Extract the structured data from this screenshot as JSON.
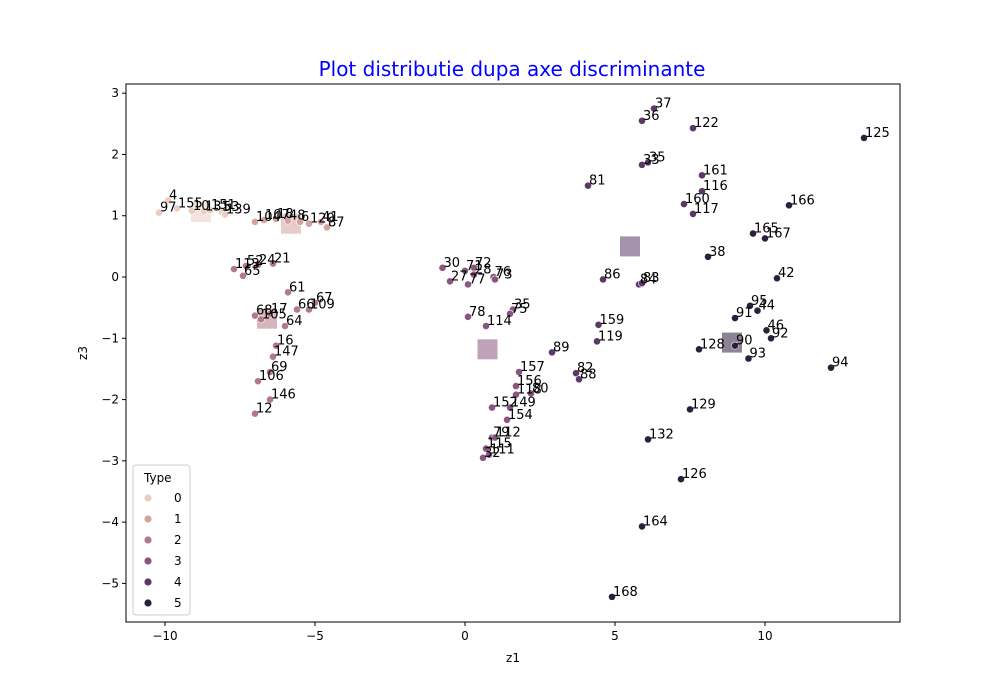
{
  "chart_data": {
    "type": "scatter",
    "title": "Plot distributie dupa axe discriminante",
    "title_color": "#0000ff",
    "xlabel": "z1",
    "ylabel": "z3",
    "xlim": [
      -11.3,
      14.5
    ],
    "ylim": [
      -5.63,
      3.15
    ],
    "xticks": [
      -10,
      -5,
      0,
      5,
      10
    ],
    "yticks": [
      3,
      2,
      1,
      0,
      -1,
      -2,
      -3,
      -4,
      -5
    ],
    "grid": false,
    "legend": {
      "title": "Type",
      "placement": "lower-left",
      "entries": [
        {
          "label": "0",
          "color": "#ebcdc2"
        },
        {
          "label": "1",
          "color": "#d5a2a0"
        },
        {
          "label": "2",
          "color": "#b47987"
        },
        {
          "label": "3",
          "color": "#8a5680"
        },
        {
          "label": "4",
          "color": "#5b3868"
        },
        {
          "label": "5",
          "color": "#2d1e3e"
        }
      ]
    },
    "points": [
      {
        "label": "4",
        "x": -9.9,
        "y": 1.25,
        "t": 0
      },
      {
        "label": "97",
        "x": -10.2,
        "y": 1.05,
        "t": 0
      },
      {
        "label": "155",
        "x": -9.6,
        "y": 1.12,
        "t": 0
      },
      {
        "label": "10",
        "x": -9.1,
        "y": 1.08,
        "t": 0
      },
      {
        "label": "131",
        "x": -8.7,
        "y": 1.07,
        "t": 0
      },
      {
        "label": "151",
        "x": -8.5,
        "y": 1.09,
        "t": 0
      },
      {
        "label": "53",
        "x": -8.1,
        "y": 1.06,
        "t": 0
      },
      {
        "label": "139",
        "x": -8.0,
        "y": 1.02,
        "t": 0
      },
      {
        "label": "104",
        "x": -7.0,
        "y": 0.9,
        "t": 1
      },
      {
        "label": "107",
        "x": -6.7,
        "y": 0.93,
        "t": 1
      },
      {
        "label": "18",
        "x": -6.3,
        "y": 0.95,
        "t": 1
      },
      {
        "label": "48",
        "x": -5.9,
        "y": 0.92,
        "t": 1
      },
      {
        "label": "6",
        "x": -5.5,
        "y": 0.9,
        "t": 1
      },
      {
        "label": "120",
        "x": -5.2,
        "y": 0.87,
        "t": 1
      },
      {
        "label": "41",
        "x": -4.8,
        "y": 0.9,
        "t": 1
      },
      {
        "label": "87",
        "x": -4.6,
        "y": 0.81,
        "t": 1
      },
      {
        "label": "113",
        "x": -7.7,
        "y": 0.13,
        "t": 2
      },
      {
        "label": "52",
        "x": -7.3,
        "y": 0.18,
        "t": 2
      },
      {
        "label": "24",
        "x": -6.9,
        "y": 0.2,
        "t": 2
      },
      {
        "label": "21",
        "x": -6.4,
        "y": 0.22,
        "t": 2
      },
      {
        "label": "65",
        "x": -7.4,
        "y": 0.02,
        "t": 2
      },
      {
        "label": "61",
        "x": -5.9,
        "y": -0.25,
        "t": 2
      },
      {
        "label": "67",
        "x": -5.0,
        "y": -0.42,
        "t": 2
      },
      {
        "label": "66",
        "x": -5.6,
        "y": -0.53,
        "t": 2
      },
      {
        "label": "109",
        "x": -5.2,
        "y": -0.53,
        "t": 2
      },
      {
        "label": "17",
        "x": -6.5,
        "y": -0.6,
        "t": 2
      },
      {
        "label": "68",
        "x": -7.0,
        "y": -0.63,
        "t": 2
      },
      {
        "label": "105",
        "x": -6.8,
        "y": -0.69,
        "t": 2
      },
      {
        "label": "64",
        "x": -6.0,
        "y": -0.8,
        "t": 2
      },
      {
        "label": "16",
        "x": -6.3,
        "y": -1.12,
        "t": 2
      },
      {
        "label": "147",
        "x": -6.4,
        "y": -1.3,
        "t": 2
      },
      {
        "label": "69",
        "x": -6.5,
        "y": -1.55,
        "t": 2
      },
      {
        "label": "106",
        "x": -6.9,
        "y": -1.7,
        "t": 2
      },
      {
        "label": "146",
        "x": -6.5,
        "y": -2.0,
        "t": 2
      },
      {
        "label": "12",
        "x": -7.0,
        "y": -2.23,
        "t": 2
      },
      {
        "label": "30",
        "x": -0.75,
        "y": 0.15,
        "t": 3
      },
      {
        "label": "27",
        "x": -0.5,
        "y": -0.07,
        "t": 3
      },
      {
        "label": "71",
        "x": 0.0,
        "y": 0.1,
        "t": 3
      },
      {
        "label": "72",
        "x": 0.3,
        "y": 0.15,
        "t": 3
      },
      {
        "label": "28",
        "x": 0.3,
        "y": 0.04,
        "t": 3
      },
      {
        "label": "77",
        "x": 0.1,
        "y": -0.12,
        "t": 3
      },
      {
        "label": "76",
        "x": 0.95,
        "y": 0.0,
        "t": 3
      },
      {
        "label": "73",
        "x": 1.0,
        "y": -0.04,
        "t": 3
      },
      {
        "label": "78",
        "x": 0.1,
        "y": -0.65,
        "t": 3
      },
      {
        "label": "114",
        "x": 0.7,
        "y": -0.8,
        "t": 3
      },
      {
        "label": "35",
        "x": 1.6,
        "y": -0.53,
        "t": 3
      },
      {
        "label": "75",
        "x": 1.5,
        "y": -0.6,
        "t": 3
      },
      {
        "label": "157",
        "x": 1.8,
        "y": -1.55,
        "t": 3
      },
      {
        "label": "156",
        "x": 1.7,
        "y": -1.78,
        "t": 3
      },
      {
        "label": "118",
        "x": 1.7,
        "y": -1.92,
        "t": 3
      },
      {
        "label": "80",
        "x": 2.2,
        "y": -1.9,
        "t": 3
      },
      {
        "label": "152",
        "x": 0.9,
        "y": -2.13,
        "t": 3
      },
      {
        "label": "149",
        "x": 1.5,
        "y": -2.13,
        "t": 3
      },
      {
        "label": "154",
        "x": 1.4,
        "y": -2.33,
        "t": 3
      },
      {
        "label": "79",
        "x": 0.9,
        "y": -2.62,
        "t": 3
      },
      {
        "label": "112",
        "x": 1.0,
        "y": -2.62,
        "t": 3
      },
      {
        "label": "115",
        "x": 0.7,
        "y": -2.8,
        "t": 3
      },
      {
        "label": "111",
        "x": 0.8,
        "y": -2.9,
        "t": 3
      },
      {
        "label": "32",
        "x": 0.6,
        "y": -2.95,
        "t": 3
      },
      {
        "label": "82",
        "x": 3.7,
        "y": -1.57,
        "t": 4
      },
      {
        "label": "88",
        "x": 3.8,
        "y": -1.67,
        "t": 4
      },
      {
        "label": "89",
        "x": 2.9,
        "y": -1.23,
        "t": 4
      },
      {
        "label": "119",
        "x": 4.4,
        "y": -1.05,
        "t": 4
      },
      {
        "label": "159",
        "x": 4.45,
        "y": -0.78,
        "t": 4
      },
      {
        "label": "86",
        "x": 4.6,
        "y": -0.04,
        "t": 4
      },
      {
        "label": "84",
        "x": 5.8,
        "y": -0.12,
        "t": 4
      },
      {
        "label": "83",
        "x": 5.9,
        "y": -0.1,
        "t": 4
      },
      {
        "label": "81",
        "x": 4.1,
        "y": 1.49,
        "t": 4
      },
      {
        "label": "37",
        "x": 6.3,
        "y": 2.75,
        "t": 4
      },
      {
        "label": "36",
        "x": 5.9,
        "y": 2.55,
        "t": 4
      },
      {
        "label": "122",
        "x": 7.6,
        "y": 2.43,
        "t": 4
      },
      {
        "label": "33",
        "x": 5.9,
        "y": 1.83,
        "t": 4
      },
      {
        "label": "35",
        "x": 6.1,
        "y": 1.87,
        "t": 4
      },
      {
        "label": "161",
        "x": 7.9,
        "y": 1.66,
        "t": 4
      },
      {
        "label": "116",
        "x": 7.9,
        "y": 1.4,
        "t": 4
      },
      {
        "label": "160",
        "x": 7.3,
        "y": 1.19,
        "t": 4
      },
      {
        "label": "117",
        "x": 7.6,
        "y": 1.03,
        "t": 4
      },
      {
        "label": "125",
        "x": 13.3,
        "y": 2.27,
        "t": 5
      },
      {
        "label": "166",
        "x": 10.8,
        "y": 1.17,
        "t": 5
      },
      {
        "label": "165",
        "x": 9.6,
        "y": 0.71,
        "t": 5
      },
      {
        "label": "167",
        "x": 10.0,
        "y": 0.63,
        "t": 5
      },
      {
        "label": "38",
        "x": 8.1,
        "y": 0.33,
        "t": 5
      },
      {
        "label": "42",
        "x": 10.4,
        "y": -0.02,
        "t": 5
      },
      {
        "label": "95",
        "x": 9.5,
        "y": -0.47,
        "t": 5
      },
      {
        "label": "44",
        "x": 9.75,
        "y": -0.55,
        "t": 5
      },
      {
        "label": "91",
        "x": 9.0,
        "y": -0.67,
        "t": 5
      },
      {
        "label": "46",
        "x": 10.05,
        "y": -0.87,
        "t": 5
      },
      {
        "label": "92",
        "x": 10.2,
        "y": -1.0,
        "t": 5
      },
      {
        "label": "90",
        "x": 9.0,
        "y": -1.12,
        "t": 5
      },
      {
        "label": "128",
        "x": 7.8,
        "y": -1.18,
        "t": 5
      },
      {
        "label": "93",
        "x": 9.45,
        "y": -1.33,
        "t": 5
      },
      {
        "label": "94",
        "x": 12.2,
        "y": -1.48,
        "t": 5
      },
      {
        "label": "129",
        "x": 7.5,
        "y": -2.16,
        "t": 5
      },
      {
        "label": "132",
        "x": 6.1,
        "y": -2.65,
        "t": 5
      },
      {
        "label": "126",
        "x": 7.2,
        "y": -3.3,
        "t": 5
      },
      {
        "label": "164",
        "x": 5.9,
        "y": -4.07,
        "t": 5
      },
      {
        "label": "168",
        "x": 4.9,
        "y": -5.22,
        "t": 5
      }
    ],
    "centroids": [
      {
        "x": -8.8,
        "y": 1.06,
        "t": 0
      },
      {
        "x": -5.8,
        "y": 0.87,
        "t": 1
      },
      {
        "x": -6.6,
        "y": -0.68,
        "t": 2
      },
      {
        "x": 0.75,
        "y": -1.18,
        "t": 3
      },
      {
        "x": 5.5,
        "y": 0.5,
        "t": 4
      },
      {
        "x": 8.9,
        "y": -1.07,
        "t": 5
      }
    ]
  }
}
